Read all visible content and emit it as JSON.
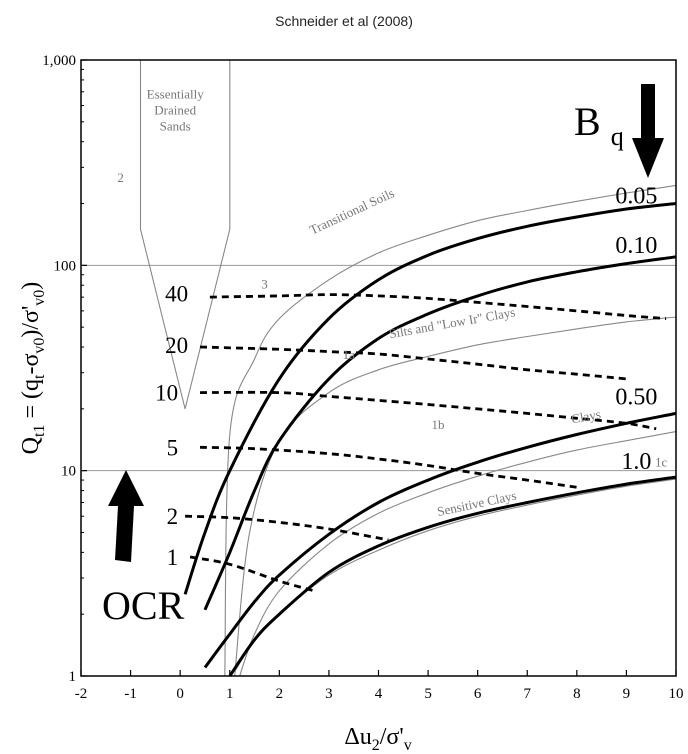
{
  "chart_data": {
    "type": "line",
    "title": "Schneider et al (2008)",
    "xlabel": "Δu2/σ'v",
    "ylabel": "Qt1 = (qt-σv0)/σ'v0",
    "xlim": [
      -2,
      10
    ],
    "ylim": [
      1,
      1000
    ],
    "yscale": "log",
    "x_ticks": [
      "-2",
      "-1",
      "0",
      "1",
      "2",
      "3",
      "4",
      "5",
      "6",
      "7",
      "8",
      "9",
      "10"
    ],
    "y_ticks": [
      {
        "value": 1,
        "label": "1"
      },
      {
        "value": 10,
        "label": "10"
      },
      {
        "value": 100,
        "label": "100"
      },
      {
        "value": 1000,
        "label": "1,000"
      }
    ],
    "grid": {
      "horizontal_at": [
        10,
        100
      ],
      "vertical": false
    },
    "bq_label": "B",
    "bq_sub": "q",
    "ocr_label": "OCR",
    "bq_series": [
      {
        "label": "0.05",
        "points": [
          [
            0.1,
            2.5
          ],
          [
            0.5,
            5
          ],
          [
            1,
            10
          ],
          [
            2,
            28
          ],
          [
            3,
            55
          ],
          [
            4,
            85
          ],
          [
            5,
            112
          ],
          [
            6,
            135
          ],
          [
            7,
            155
          ],
          [
            8,
            172
          ],
          [
            9,
            188
          ],
          [
            10,
            200
          ]
        ]
      },
      {
        "label": "0.10",
        "points": [
          [
            0.5,
            2.1
          ],
          [
            1,
            4
          ],
          [
            1.5,
            8
          ],
          [
            2,
            14
          ],
          [
            3,
            28
          ],
          [
            4,
            44
          ],
          [
            5,
            58
          ],
          [
            6,
            71
          ],
          [
            7,
            83
          ],
          [
            8,
            93
          ],
          [
            9,
            102
          ],
          [
            10,
            110
          ]
        ]
      },
      {
        "label": "0.50",
        "points": [
          [
            0.5,
            1.1
          ],
          [
            1,
            1.6
          ],
          [
            1.5,
            2.3
          ],
          [
            2,
            3.1
          ],
          [
            3,
            4.9
          ],
          [
            4,
            7
          ],
          [
            5,
            9
          ],
          [
            6,
            11
          ],
          [
            7,
            13
          ],
          [
            8,
            15
          ],
          [
            9,
            17
          ],
          [
            10,
            19
          ]
        ]
      },
      {
        "label": "1.0",
        "points": [
          [
            1,
            1.0
          ],
          [
            1.5,
            1.5
          ],
          [
            2,
            2
          ],
          [
            3,
            3.2
          ],
          [
            4,
            4.3
          ],
          [
            5,
            5.3
          ],
          [
            6,
            6.2
          ],
          [
            7,
            7
          ],
          [
            8,
            7.8
          ],
          [
            9,
            8.6
          ],
          [
            10,
            9.3
          ]
        ]
      }
    ],
    "ocr_series": [
      {
        "label": "40",
        "points": [
          [
            0.6,
            70
          ],
          [
            2,
            71
          ],
          [
            3,
            72
          ],
          [
            4,
            71
          ],
          [
            5,
            69
          ],
          [
            6,
            66
          ],
          [
            7,
            63
          ],
          [
            8,
            60
          ],
          [
            9,
            57
          ],
          [
            9.8,
            55
          ]
        ]
      },
      {
        "label": "20",
        "points": [
          [
            0.4,
            40
          ],
          [
            2,
            39
          ],
          [
            3,
            38
          ],
          [
            4,
            37
          ],
          [
            5,
            35
          ],
          [
            6,
            33
          ],
          [
            7,
            31
          ],
          [
            8,
            29.5
          ],
          [
            9,
            28
          ]
        ]
      },
      {
        "label": "10",
        "points": [
          [
            0.4,
            24
          ],
          [
            2,
            24
          ],
          [
            3,
            23
          ],
          [
            4,
            22
          ],
          [
            5,
            21
          ],
          [
            6,
            20
          ],
          [
            7,
            19
          ],
          [
            8,
            18
          ],
          [
            9,
            17
          ],
          [
            9.6,
            16
          ]
        ]
      },
      {
        "label": "5",
        "points": [
          [
            0.4,
            13
          ],
          [
            1.5,
            12.8
          ],
          [
            3,
            12.1
          ],
          [
            4,
            11.4
          ],
          [
            5,
            10.6
          ],
          [
            6,
            9.7
          ],
          [
            7,
            9
          ],
          [
            8,
            8.3
          ]
        ]
      },
      {
        "label": "2",
        "points": [
          [
            0.1,
            6
          ],
          [
            1,
            5.9
          ],
          [
            2,
            5.6
          ],
          [
            3,
            5.2
          ],
          [
            4,
            4.7
          ],
          [
            4.2,
            4.6
          ]
        ]
      },
      {
        "label": "1",
        "points": [
          [
            0.2,
            3.8
          ],
          [
            1,
            3.5
          ],
          [
            2,
            2.9
          ],
          [
            2.7,
            2.6
          ]
        ]
      }
    ],
    "zone_boundaries": [
      {
        "name": "drained-sands-wedge",
        "points": [
          [
            -0.8,
            1000
          ],
          [
            -0.8,
            150
          ],
          [
            0.1,
            20
          ],
          [
            1,
            150
          ],
          [
            1,
            1000
          ]
        ]
      },
      {
        "name": "transitional-upper",
        "points": [
          [
            0.9,
            1.0
          ],
          [
            1,
            15
          ],
          [
            1.5,
            35
          ],
          [
            2,
            55
          ],
          [
            3,
            85
          ],
          [
            4,
            115
          ],
          [
            5,
            140
          ],
          [
            6,
            165
          ],
          [
            7,
            185
          ],
          [
            8,
            205
          ],
          [
            9,
            225
          ],
          [
            10,
            245
          ]
        ]
      },
      {
        "name": "transitional-lower",
        "points": [
          [
            1.1,
            1.0
          ],
          [
            1.4,
            5
          ],
          [
            2,
            14
          ],
          [
            3,
            24
          ],
          [
            4,
            31
          ],
          [
            5,
            36
          ],
          [
            6,
            41
          ],
          [
            7,
            45
          ],
          [
            8,
            49
          ],
          [
            9,
            53
          ],
          [
            10,
            56
          ]
        ]
      },
      {
        "name": "clays-sensitive-boundary",
        "points": [
          [
            1.2,
            1.0
          ],
          [
            1.5,
            1.6
          ],
          [
            2,
            2.6
          ],
          [
            3,
            4.4
          ],
          [
            4,
            6.2
          ],
          [
            5,
            7.8
          ],
          [
            6,
            9.4
          ],
          [
            7,
            11
          ],
          [
            8,
            12.6
          ],
          [
            9,
            14
          ],
          [
            10,
            15.5
          ]
        ]
      },
      {
        "name": "sensitive-lower",
        "points": [
          [
            1.1,
            1.05
          ],
          [
            1.5,
            1.5
          ],
          [
            2,
            2.0
          ],
          [
            3,
            3.1
          ],
          [
            4,
            4.1
          ],
          [
            5,
            5.1
          ],
          [
            6,
            6.0
          ],
          [
            7,
            6.8
          ],
          [
            8,
            7.6
          ],
          [
            9,
            8.4
          ],
          [
            10,
            9.1
          ]
        ]
      }
    ],
    "zone_labels": [
      {
        "lines": [
          "Essentially",
          "Drained",
          "Sands"
        ],
        "x": -0.1,
        "y": 650
      },
      {
        "lines": [
          "2"
        ],
        "x": -1.2,
        "y": 255
      },
      {
        "lines": [
          "Transitional Soils"
        ],
        "x": 3.5,
        "y": 175,
        "rotate": -25
      },
      {
        "lines": [
          "3"
        ],
        "x": 1.7,
        "y": 77
      },
      {
        "lines": [
          "Silts and \"Low Ir\" Clays"
        ],
        "x": 5.5,
        "y": 50,
        "rotate": -10
      },
      {
        "lines": [
          "1a"
        ],
        "x": 3.4,
        "y": 35
      },
      {
        "lines": [
          "Clays"
        ],
        "x": 8.2,
        "y": 17.5,
        "rotate": -10
      },
      {
        "lines": [
          "1b"
        ],
        "x": 5.2,
        "y": 16
      },
      {
        "lines": [
          "1c"
        ],
        "x": 9.7,
        "y": 10.5
      },
      {
        "lines": [
          "Sensitive Clays"
        ],
        "x": 6,
        "y": 6.6,
        "rotate": -12
      }
    ],
    "bq_label_positions": [
      {
        "text": "0.05",
        "x": 9.2,
        "y": 200
      },
      {
        "text": "0.10",
        "x": 9.2,
        "y": 115
      },
      {
        "text": "0.50",
        "x": 9.2,
        "y": 21
      },
      {
        "text": "1.0",
        "x": 9.2,
        "y": 10.2
      }
    ],
    "ocr_label_positions": [
      {
        "text": "40",
        "x": 0.2,
        "y": 73
      },
      {
        "text": "20",
        "x": 0.2,
        "y": 41
      },
      {
        "text": "10",
        "x": 0.0,
        "y": 24
      },
      {
        "text": "5",
        "x": 0.0,
        "y": 13
      },
      {
        "text": "2",
        "x": 0.0,
        "y": 6
      },
      {
        "text": "1",
        "x": 0.0,
        "y": 3.8
      }
    ]
  }
}
